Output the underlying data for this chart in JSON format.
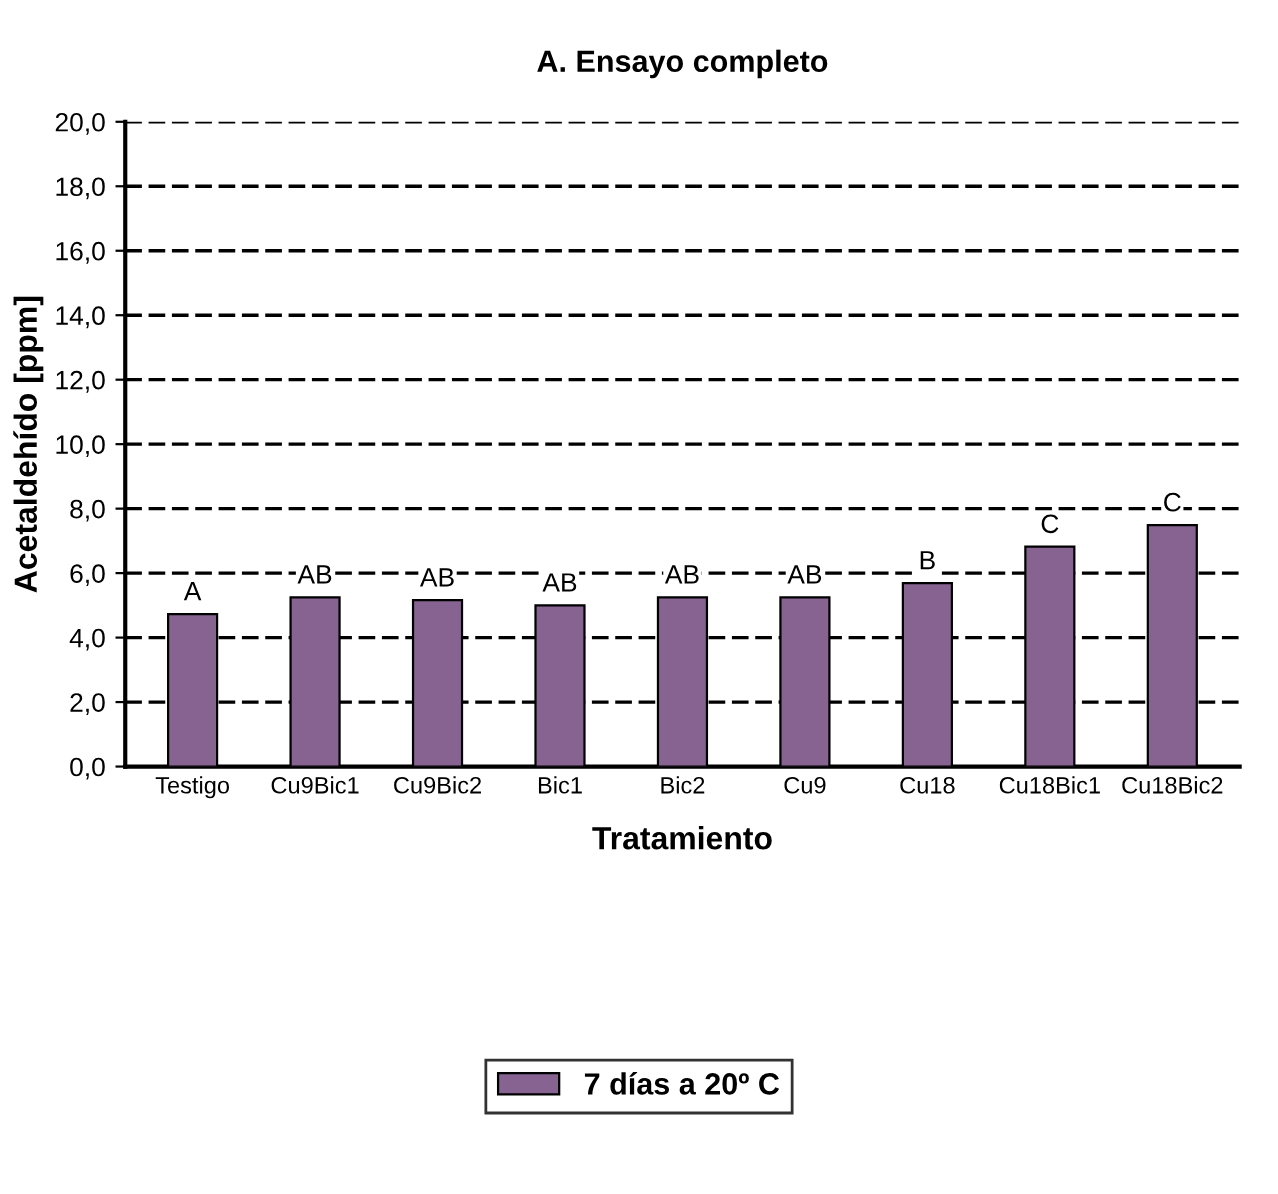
{
  "chart_data": {
    "type": "bar",
    "title": "A. Ensayo completo",
    "xlabel": "Tratamiento",
    "ylabel": "Acetaldehído [ppm]",
    "categories": [
      "Testigo",
      "Cu9Bic1",
      "Cu9Bic2",
      "Bic1",
      "Bic2",
      "Cu9",
      "Cu18",
      "Cu18Bic1",
      "Cu18Bic2"
    ],
    "series": [
      {
        "name": "7 días a 20º C",
        "color": "#866391",
        "values": [
          4.73,
          5.25,
          5.16,
          5.0,
          5.25,
          5.25,
          5.69,
          6.82,
          7.49
        ]
      }
    ],
    "ylim": [
      0,
      20
    ],
    "yticks": [
      {
        "value": 0,
        "label": "0,0"
      },
      {
        "value": 2,
        "label": "2,0"
      },
      {
        "value": 4,
        "label": "4,0"
      },
      {
        "value": 6,
        "label": "6,0"
      },
      {
        "value": 8,
        "label": "8,0"
      },
      {
        "value": 10,
        "label": "10,0"
      },
      {
        "value": 12,
        "label": "12,0"
      },
      {
        "value": 14,
        "label": "14,0"
      },
      {
        "value": 16,
        "label": "16,0"
      },
      {
        "value": 18,
        "label": "18,0"
      },
      {
        "value": 20,
        "label": "20,0"
      }
    ],
    "grid": "y",
    "legend": "bottom",
    "annotations": [
      "A",
      "AB",
      "AB",
      "AB",
      "AB",
      "AB",
      "B",
      "C",
      "C"
    ]
  }
}
